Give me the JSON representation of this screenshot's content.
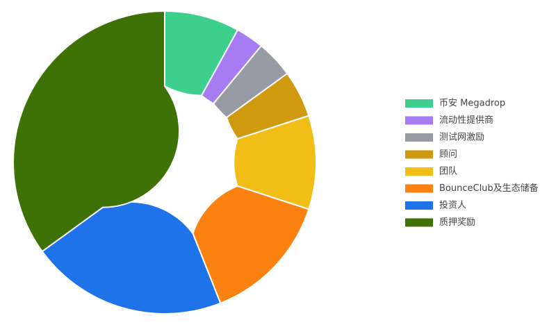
{
  "chart_data": {
    "type": "donut",
    "categories": [
      "币安 Megadrop",
      "流动性提供商",
      "测试网激励",
      "顾问",
      "团队",
      "BounceClub及生态储备",
      "投资人",
      "质押奖励"
    ],
    "values": [
      8,
      3,
      4,
      5,
      10,
      14,
      21,
      35
    ],
    "colors": [
      "#3ecf8e",
      "#a57cf2",
      "#979ba3",
      "#cf9a10",
      "#f0be17",
      "#fb8110",
      "#1f73e8",
      "#3f7206"
    ],
    "legend": "right"
  }
}
